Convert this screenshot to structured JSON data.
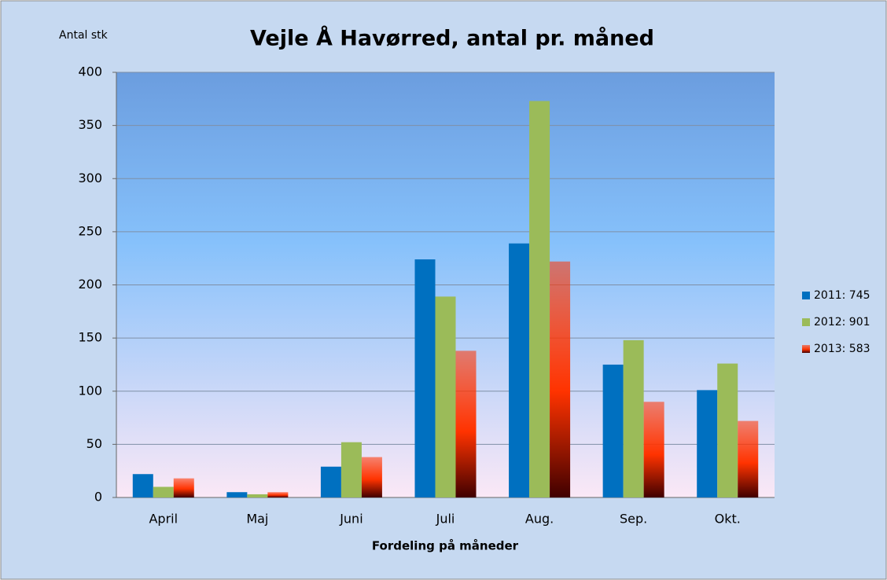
{
  "chart_data": {
    "type": "bar",
    "title": "Vejle Å Havørred, antal pr. måned",
    "y_label": "Antal stk",
    "x_label": "Fordeling  på måneder",
    "categories": [
      "April",
      "Maj",
      "Juni",
      "Juli",
      "Aug.",
      "Sep.",
      "Okt."
    ],
    "series": [
      {
        "name": "2011: 745",
        "color": "#0070c0",
        "values": [
          22,
          5,
          29,
          224,
          239,
          125,
          101
        ]
      },
      {
        "name": "2012: 901",
        "color": "#9bbb59",
        "values": [
          10,
          3,
          52,
          189,
          373,
          148,
          126
        ]
      },
      {
        "name": "2013: 583",
        "color": "#ff3300",
        "gradient": true,
        "values": [
          18,
          5,
          38,
          138,
          222,
          90,
          72
        ]
      }
    ],
    "ylim": [
      0,
      400
    ],
    "yticks": [
      0,
      50,
      100,
      150,
      200,
      250,
      300,
      350,
      400
    ],
    "grid": true,
    "legend": "right"
  }
}
